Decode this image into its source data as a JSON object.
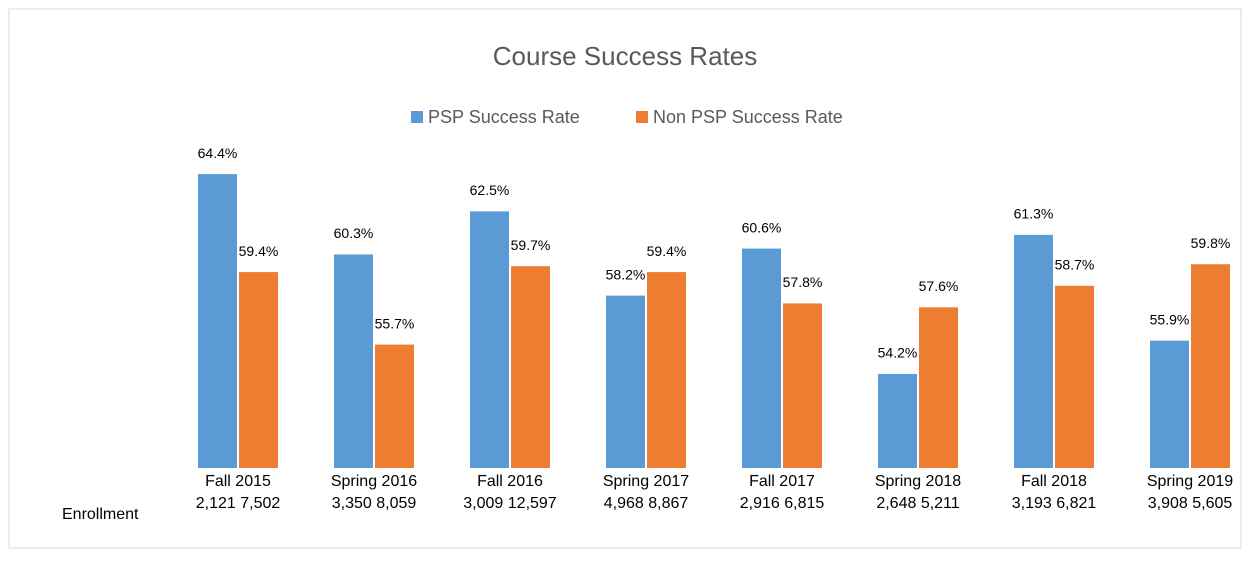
{
  "chart_data": {
    "type": "bar",
    "title": "Course Success Rates",
    "categories": [
      "Fall 2015",
      "Spring 2016",
      "Fall 2016",
      "Spring 2017",
      "Fall 2017",
      "Spring 2018",
      "Fall 2018",
      "Spring 2019"
    ],
    "series": [
      {
        "name": "PSP Success Rate",
        "color": "#5b9bd5",
        "values": [
          64.4,
          60.3,
          62.5,
          58.2,
          60.6,
          54.2,
          61.3,
          55.9
        ],
        "value_labels": [
          "64.4%",
          "60.3%",
          "62.5%",
          "58.2%",
          "60.6%",
          "54.2%",
          "61.3%",
          "55.9%"
        ]
      },
      {
        "name": "Non PSP Success Rate",
        "color": "#ed7d31",
        "values": [
          59.4,
          55.7,
          59.7,
          59.4,
          57.8,
          57.6,
          58.7,
          59.8
        ],
        "value_labels": [
          "59.4%",
          "55.7%",
          "59.7%",
          "59.4%",
          "57.8%",
          "57.6%",
          "58.7%",
          "59.8%"
        ]
      }
    ],
    "row_label": "Enrollment",
    "enrollment": [
      "2,121 7,502",
      "3,350 8,059",
      "3,009 12,597",
      "4,968 8,867",
      "2,916 6,815",
      "2,648 5,211",
      "3,193 6,821",
      "3,908 5,605"
    ],
    "ylim": [
      49.4,
      69
    ]
  }
}
